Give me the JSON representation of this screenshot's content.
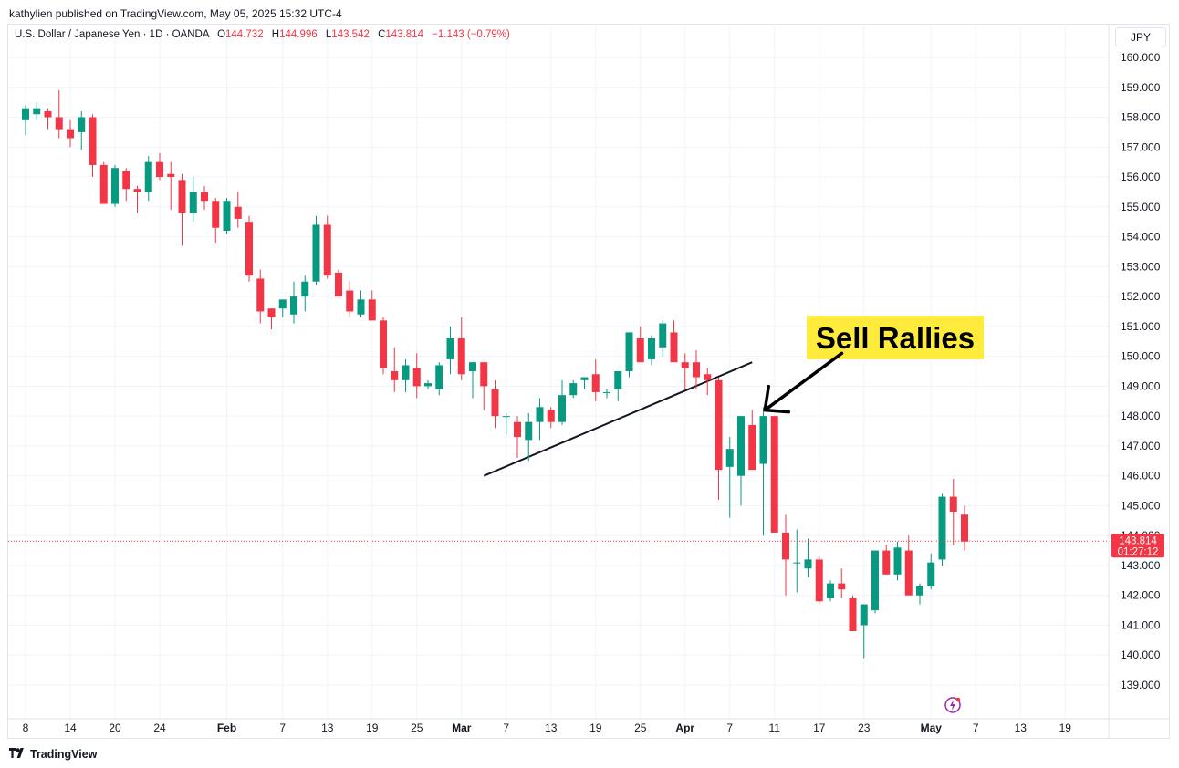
{
  "header": {
    "publisher": "kathylien published on TradingView.com, May 05, 2025 15:32 UTC-4"
  },
  "legend": {
    "symbol": "U.S. Dollar / Japanese Yen · 1D · OANDA",
    "o_label": "O",
    "o": "144.732",
    "h_label": "H",
    "h": "144.996",
    "l_label": "L",
    "l": "143.542",
    "c_label": "C",
    "c": "143.814",
    "change": "−1.143 (−0.79%)"
  },
  "currency": "JPY",
  "price_badge": {
    "price": "143.814",
    "countdown": "01:27:12"
  },
  "annotation": {
    "text": "Sell Rallies"
  },
  "footer": {
    "brand": "TradingView",
    "logo_icon": "tradingview-logo-icon"
  },
  "colors": {
    "up": "#089981",
    "down": "#f23645",
    "annotation_bg": "#ffeb3b",
    "grid": "#f0f3fa"
  },
  "chart_data": {
    "type": "candlestick",
    "symbol": "USDJPY",
    "interval": "1D",
    "y_ticks": [
      "139.000",
      "140.000",
      "141.000",
      "142.000",
      "143.000",
      "144.000",
      "145.000",
      "146.000",
      "147.000",
      "148.000",
      "149.000",
      "150.000",
      "151.000",
      "152.000",
      "153.000",
      "154.000",
      "155.000",
      "156.000",
      "157.000",
      "158.000",
      "159.000",
      "160.000"
    ],
    "x_ticks": [
      {
        "label": "8",
        "i": 0
      },
      {
        "label": "14",
        "i": 4
      },
      {
        "label": "20",
        "i": 8
      },
      {
        "label": "24",
        "i": 12
      },
      {
        "label": "Feb",
        "i": 18
      },
      {
        "label": "7",
        "i": 23
      },
      {
        "label": "13",
        "i": 27
      },
      {
        "label": "19",
        "i": 31
      },
      {
        "label": "25",
        "i": 35
      },
      {
        "label": "Mar",
        "i": 39
      },
      {
        "label": "7",
        "i": 43
      },
      {
        "label": "13",
        "i": 47
      },
      {
        "label": "19",
        "i": 51
      },
      {
        "label": "25",
        "i": 55
      },
      {
        "label": "Apr",
        "i": 59
      },
      {
        "label": "7",
        "i": 63
      },
      {
        "label": "11",
        "i": 67
      },
      {
        "label": "17",
        "i": 71
      },
      {
        "label": "23",
        "i": 75
      },
      {
        "label": "May",
        "i": 81
      },
      {
        "label": "7",
        "i": 85
      },
      {
        "label": "13",
        "i": 89
      },
      {
        "label": "19",
        "i": 93
      },
      {
        "label": "23",
        "i": 97
      }
    ],
    "ylim": [
      138.2,
      160.6
    ],
    "candles": [
      [
        157.9,
        158.4,
        157.4,
        158.3
      ],
      [
        158.1,
        158.5,
        157.9,
        158.3
      ],
      [
        158.2,
        158.3,
        157.6,
        158.0
      ],
      [
        158.0,
        158.9,
        157.3,
        157.6
      ],
      [
        157.6,
        157.9,
        157.0,
        157.3
      ],
      [
        157.5,
        158.2,
        156.9,
        158.0
      ],
      [
        158.0,
        158.1,
        156.0,
        156.4
      ],
      [
        156.4,
        156.5,
        155.1,
        155.1
      ],
      [
        155.1,
        156.4,
        155.0,
        156.3
      ],
      [
        156.2,
        156.3,
        155.2,
        155.6
      ],
      [
        155.6,
        155.7,
        154.8,
        155.5
      ],
      [
        155.5,
        156.7,
        155.2,
        156.5
      ],
      [
        156.5,
        156.8,
        155.9,
        156.0
      ],
      [
        156.1,
        156.5,
        154.9,
        156.0
      ],
      [
        155.9,
        156.1,
        153.7,
        154.8
      ],
      [
        154.8,
        156.0,
        154.5,
        155.5
      ],
      [
        155.5,
        155.7,
        154.9,
        155.2
      ],
      [
        155.2,
        155.3,
        153.8,
        154.3
      ],
      [
        154.2,
        155.3,
        154.1,
        155.2
      ],
      [
        155.0,
        155.5,
        154.3,
        154.6
      ],
      [
        154.5,
        154.7,
        152.5,
        152.7
      ],
      [
        152.6,
        152.9,
        151.1,
        151.5
      ],
      [
        151.6,
        151.6,
        150.9,
        151.3
      ],
      [
        151.6,
        151.9,
        151.3,
        151.9
      ],
      [
        151.4,
        152.5,
        151.1,
        152.0
      ],
      [
        152.0,
        152.7,
        151.5,
        152.5
      ],
      [
        152.5,
        154.7,
        152.4,
        154.4
      ],
      [
        154.4,
        154.7,
        152.6,
        152.7
      ],
      [
        152.8,
        152.9,
        152.0,
        152.0
      ],
      [
        152.2,
        152.5,
        151.3,
        151.5
      ],
      [
        151.4,
        152.2,
        151.3,
        151.9
      ],
      [
        151.9,
        152.2,
        151.2,
        151.2
      ],
      [
        151.2,
        151.3,
        149.4,
        149.6
      ],
      [
        149.5,
        150.3,
        148.8,
        149.2
      ],
      [
        149.2,
        149.9,
        148.8,
        149.7
      ],
      [
        149.6,
        150.1,
        148.6,
        149.0
      ],
      [
        149.0,
        149.2,
        148.9,
        149.1
      ],
      [
        148.9,
        149.8,
        148.7,
        149.7
      ],
      [
        149.9,
        151.0,
        149.4,
        150.6
      ],
      [
        150.6,
        151.3,
        149.2,
        149.4
      ],
      [
        149.5,
        149.8,
        148.6,
        149.8
      ],
      [
        149.8,
        149.8,
        148.2,
        149.0
      ],
      [
        148.9,
        149.2,
        147.6,
        148.0
      ],
      [
        148.0,
        148.1,
        147.4,
        148.0
      ],
      [
        147.8,
        148.0,
        146.6,
        147.3
      ],
      [
        147.2,
        148.1,
        146.5,
        147.8
      ],
      [
        147.8,
        148.6,
        147.2,
        148.3
      ],
      [
        148.2,
        148.3,
        147.6,
        147.8
      ],
      [
        147.8,
        149.2,
        147.7,
        148.7
      ],
      [
        148.7,
        149.2,
        148.6,
        149.1
      ],
      [
        149.2,
        149.3,
        148.9,
        149.3
      ],
      [
        149.4,
        149.9,
        148.5,
        148.8
      ],
      [
        148.8,
        148.9,
        148.6,
        148.8
      ],
      [
        148.9,
        149.5,
        148.5,
        149.5
      ],
      [
        149.5,
        150.8,
        149.3,
        150.8
      ],
      [
        150.6,
        151.0,
        149.8,
        149.8
      ],
      [
        149.9,
        150.7,
        149.7,
        150.6
      ],
      [
        150.3,
        151.2,
        150.0,
        151.1
      ],
      [
        150.8,
        151.2,
        149.9,
        149.8
      ],
      [
        149.8,
        150.1,
        148.9,
        149.6
      ],
      [
        149.8,
        150.2,
        148.9,
        149.3
      ],
      [
        149.4,
        149.6,
        148.7,
        149.2
      ],
      [
        149.2,
        149.3,
        145.2,
        146.2
      ],
      [
        146.3,
        147.3,
        144.6,
        146.9
      ],
      [
        146.0,
        148.0,
        145.0,
        148.0
      ],
      [
        147.7,
        148.2,
        146.2,
        146.2
      ],
      [
        146.4,
        148.3,
        144.0,
        148.0
      ],
      [
        148.0,
        148.0,
        144.1,
        144.1
      ],
      [
        144.1,
        144.7,
        142.0,
        143.2
      ],
      [
        143.1,
        144.2,
        142.1,
        143.1
      ],
      [
        142.9,
        143.9,
        142.6,
        143.2
      ],
      [
        143.2,
        143.3,
        141.7,
        141.8
      ],
      [
        141.9,
        142.5,
        141.8,
        142.4
      ],
      [
        142.4,
        142.9,
        141.9,
        142.2
      ],
      [
        141.9,
        142.0,
        140.8,
        140.8
      ],
      [
        141.0,
        141.6,
        139.9,
        141.7
      ],
      [
        141.5,
        143.5,
        141.4,
        143.5
      ],
      [
        143.5,
        143.7,
        142.7,
        142.7
      ],
      [
        142.7,
        143.8,
        142.5,
        143.6
      ],
      [
        143.5,
        144.0,
        142.0,
        142.0
      ],
      [
        142.0,
        142.4,
        141.7,
        142.3
      ],
      [
        142.3,
        143.4,
        142.2,
        143.1
      ],
      [
        143.2,
        145.4,
        143.0,
        145.3
      ],
      [
        145.3,
        145.9,
        143.7,
        144.8
      ],
      [
        144.7,
        145.0,
        143.5,
        143.8
      ]
    ],
    "trendline": {
      "from": {
        "i": 41,
        "y": 146.0
      },
      "to": {
        "i": 65,
        "y": 149.8
      }
    },
    "arrow": {
      "from": {
        "i": 70,
        "y": 150.1
      },
      "to": {
        "i": 65,
        "y": 148.2
      }
    },
    "last_price": 143.814
  }
}
